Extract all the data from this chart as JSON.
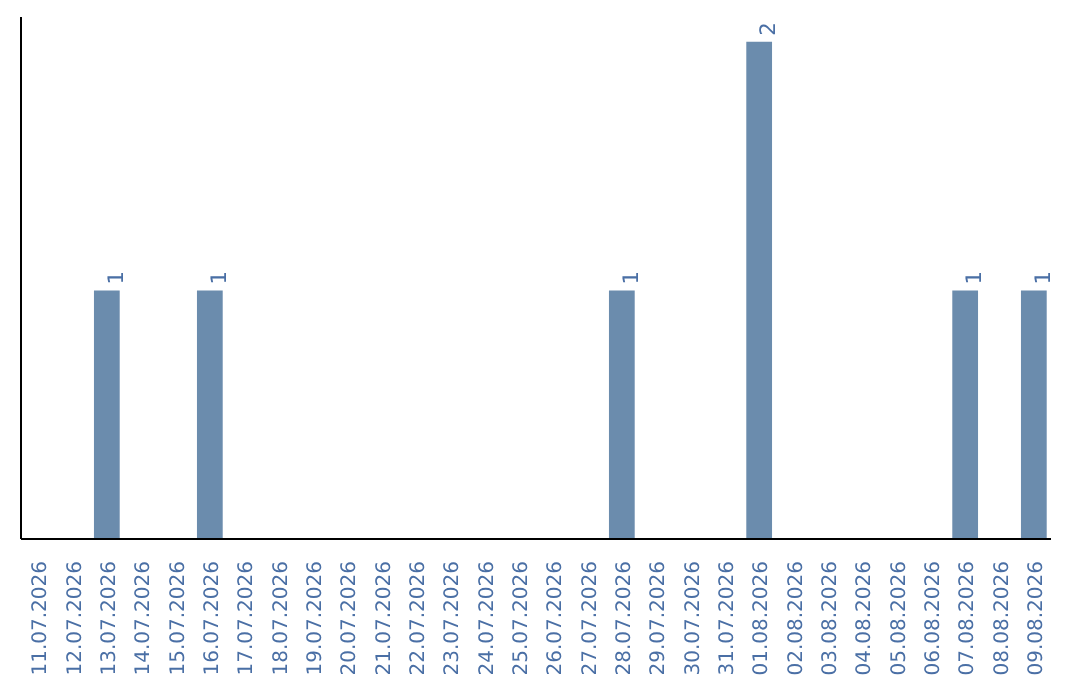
{
  "chart_data": {
    "type": "bar",
    "categories": [
      "11.07.2026",
      "12.07.2026",
      "13.07.2026",
      "14.07.2026",
      "15.07.2026",
      "16.07.2026",
      "17.07.2026",
      "18.07.2026",
      "19.07.2026",
      "20.07.2026",
      "21.07.2026",
      "22.07.2026",
      "23.07.2026",
      "24.07.2026",
      "25.07.2026",
      "26.07.2026",
      "27.07.2026",
      "28.07.2026",
      "29.07.2026",
      "30.07.2026",
      "31.07.2026",
      "01.08.2026",
      "02.08.2026",
      "03.08.2026",
      "04.08.2026",
      "05.08.2026",
      "06.08.2026",
      "07.08.2026",
      "08.08.2026",
      "09.08.2026"
    ],
    "values": [
      0,
      0,
      1,
      0,
      0,
      1,
      0,
      0,
      0,
      0,
      0,
      0,
      0,
      0,
      0,
      0,
      0,
      1,
      0,
      0,
      0,
      2,
      0,
      0,
      0,
      0,
      0,
      1,
      0,
      1
    ],
    "value_labels": [
      null,
      null,
      "1",
      null,
      null,
      "1",
      null,
      null,
      null,
      null,
      null,
      null,
      null,
      null,
      null,
      null,
      null,
      "1",
      null,
      null,
      null,
      "2",
      null,
      null,
      null,
      null,
      null,
      "1",
      null,
      "1"
    ],
    "color": "#6b8cad"
  }
}
